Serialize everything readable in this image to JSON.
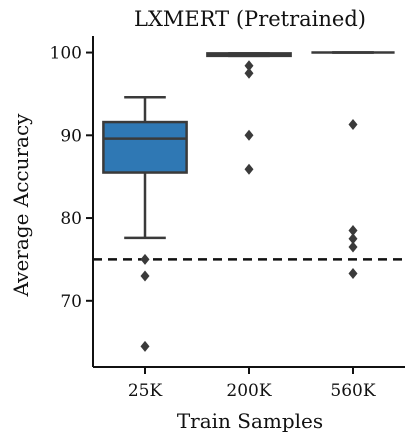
{
  "chart_data": {
    "type": "box",
    "title": "LXMERT (Pretrained)",
    "xlabel": "Train Samples",
    "ylabel": "Average Accuracy",
    "categories": [
      "25K",
      "200K",
      "560K"
    ],
    "ylim": [
      62,
      102
    ],
    "yticks": [
      70,
      80,
      90,
      100
    ],
    "reference_line": {
      "y": 75,
      "style": "dashed"
    },
    "box_color": "#2f78b4",
    "line_color": "#3a3a3a",
    "boxes": [
      {
        "category": "25K",
        "q1": 85.5,
        "median": 89.6,
        "q3": 91.6,
        "whisker_low": 77.6,
        "whisker_high": 94.6,
        "fliers": [
          75.0,
          73.0,
          64.5
        ]
      },
      {
        "category": "200K",
        "q1": 99.6,
        "median": 99.8,
        "q3": 99.9,
        "whisker_low": 99.6,
        "whisker_high": 99.9,
        "fliers": [
          98.4,
          97.5,
          90.0,
          85.9
        ]
      },
      {
        "category": "560K",
        "q1": 100.0,
        "median": 100.0,
        "q3": 100.0,
        "whisker_low": 100.0,
        "whisker_high": 100.0,
        "fliers": [
          91.3,
          78.5,
          77.5,
          76.5,
          73.3
        ]
      }
    ],
    "grid": false,
    "legend": "none"
  }
}
